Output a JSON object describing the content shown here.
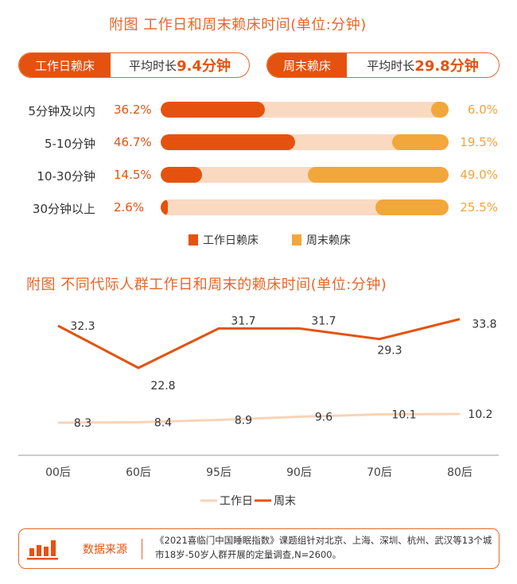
{
  "colors": {
    "accent": "#E5520F",
    "title": "#E8662A",
    "weekend_bar": "#F2A73B",
    "track": "#FAD9C1",
    "weekday_line": "#F8D3B8",
    "weekend_line": "#E5520F",
    "axis": "#CCCCCC"
  },
  "chart_data": [
    {
      "type": "bar",
      "title": "附图  工作日和周末赖床时间(单位:分钟)",
      "summary": [
        {
          "tag": "工作日赖床",
          "prefix": "平均时长",
          "value": "9.4分钟"
        },
        {
          "tag": "周末赖床",
          "prefix": "平均时长",
          "value": "29.8分钟"
        }
      ],
      "categories": [
        "5分钟及以内",
        "5-10分钟",
        "10-30分钟",
        "30分钟以上"
      ],
      "series": [
        {
          "name": "工作日赖床",
          "values": [
            36.2,
            46.7,
            14.5,
            2.6
          ],
          "labels": [
            "36.2%",
            "46.7%",
            "14.5%",
            "2.6%"
          ]
        },
        {
          "name": "周末赖床",
          "values": [
            6.0,
            19.5,
            49.0,
            25.5
          ],
          "labels": [
            "6.0%",
            "19.5%",
            "49.0%",
            "25.5%"
          ]
        }
      ],
      "xlim": [
        0,
        100
      ],
      "unit": "%",
      "legend_position": "bottom"
    },
    {
      "type": "line",
      "title": "附图  不同代际人群工作日和周末的赖床时间(单位:分钟)",
      "categories": [
        "00后",
        "60后",
        "95后",
        "90后",
        "70后",
        "80后"
      ],
      "series": [
        {
          "name": "工作日",
          "values": [
            8.3,
            8.4,
            8.9,
            9.6,
            10.1,
            10.2
          ],
          "labels": [
            "8.3",
            "8.4",
            "8.9",
            "9.6",
            "10.1",
            "10.2"
          ]
        },
        {
          "name": "周末",
          "values": [
            32.3,
            22.8,
            31.7,
            31.7,
            29.3,
            33.8
          ],
          "labels": [
            "32.3",
            "22.8",
            "31.7",
            "31.7",
            "29.3",
            "33.8"
          ]
        }
      ],
      "grid": false,
      "legend_position": "bottom"
    }
  ],
  "source": {
    "icon": "bar-chart-icon",
    "title": "数据来源",
    "text": "《2021喜临门中国睡眠指数》课题组针对北京、上海、深圳、杭州、武汉等13个城市18岁-50岁人群开展的定量调查,N=2600。"
  }
}
